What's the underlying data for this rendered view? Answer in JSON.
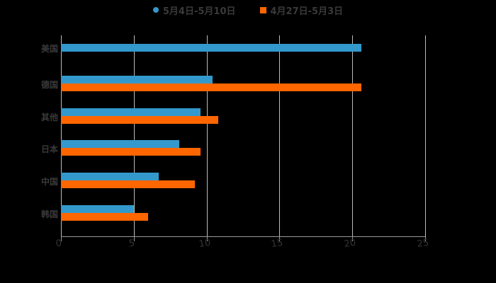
{
  "chart_data": {
    "type": "bar",
    "orientation": "horizontal",
    "title": "",
    "xlabel": "",
    "ylabel": "",
    "categories": [
      "美国",
      "德国",
      "其他",
      "日本",
      "中国",
      "韩国"
    ],
    "series": [
      {
        "name": "5月4日-5月10日",
        "color": "#3399cc",
        "values": [
          20.6,
          10.4,
          9.6,
          8.1,
          6.7,
          5.0
        ]
      },
      {
        "name": "4月27日-5月3日",
        "color": "#ff6600",
        "values": [
          null,
          20.6,
          10.8,
          9.6,
          9.2,
          6.0
        ]
      }
    ],
    "xlim": [
      0,
      25
    ],
    "xticks": [
      "0",
      "5",
      "10",
      "15",
      "20",
      "25"
    ],
    "grid": true,
    "legend_position": "top"
  },
  "legend": {
    "items": [
      {
        "label": "5月4日-5月10日",
        "color": "#3399cc",
        "marker": "circle"
      },
      {
        "label": "4月27日-5月3日",
        "color": "#ff6600",
        "marker": "square"
      }
    ]
  }
}
